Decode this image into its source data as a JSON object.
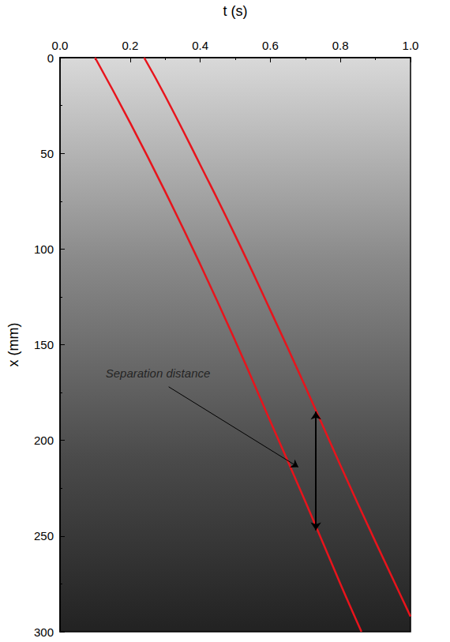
{
  "chart_data": {
    "type": "line",
    "x_label": "t (s)",
    "y_label": "x (mm)",
    "xlim": [
      0,
      1
    ],
    "xticks": [
      {
        "value": 0,
        "label": "0.0"
      },
      0.2,
      0.4,
      0.6,
      0.8,
      {
        "value": 1,
        "label": "1.0"
      }
    ],
    "ylim": [
      0,
      300
    ],
    "yticks": [
      0,
      50,
      100,
      150,
      200,
      250,
      300
    ],
    "grid": false,
    "series": [
      {
        "color": "#e8141c",
        "line_style": "solid",
        "x": [
          0.1,
          0.2,
          0.3,
          0.4,
          0.5,
          0.6,
          0.7,
          0.8,
          0.86
        ],
        "values": [
          0,
          34,
          70,
          108,
          148,
          190,
          232,
          275,
          300
        ]
      },
      {
        "color": "#e8141c",
        "line_style": "solid",
        "x": [
          0.24,
          0.3,
          0.4,
          0.5,
          0.6,
          0.7,
          0.8,
          0.9,
          1.0
        ],
        "values": [
          0,
          20,
          56,
          93,
          132,
          172,
          213,
          253,
          292
        ]
      }
    ],
    "annotations": [
      {
        "text": "Separation distance",
        "x": 0.13,
        "y": 165,
        "arrow_from": [
          0.31,
          172
        ],
        "arrow_to": [
          0.68,
          214
        ]
      }
    ],
    "separation": {
      "t": 0.73,
      "from": 185,
      "to": 247
    }
  }
}
